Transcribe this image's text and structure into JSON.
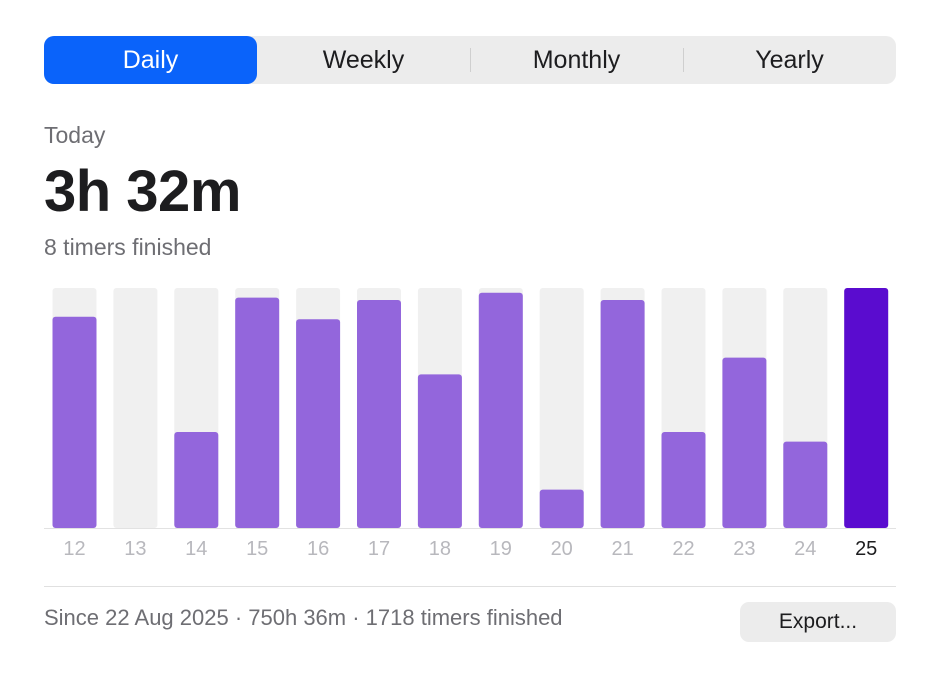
{
  "tabs": [
    {
      "label": "Daily",
      "active": true
    },
    {
      "label": "Weekly",
      "active": false
    },
    {
      "label": "Monthly",
      "active": false
    },
    {
      "label": "Yearly",
      "active": false
    }
  ],
  "summary_top": {
    "period_label": "Today",
    "total_time": "3h 32m",
    "timers_finished": "8 timers finished"
  },
  "footer": {
    "summary": "Since 22 Aug 2025 · 750h 36m · 1718 timers finished",
    "export_label": "Export..."
  },
  "colors": {
    "accent": "#0a63fa",
    "bar": "#9366dc",
    "bar_selected": "#5a0ccf",
    "track": "#f0f0f0"
  },
  "chart_data": {
    "type": "bar",
    "categories": [
      "12",
      "13",
      "14",
      "15",
      "16",
      "17",
      "18",
      "19",
      "20",
      "21",
      "22",
      "23",
      "24",
      "25"
    ],
    "values": [
      0.88,
      0,
      0.4,
      0.96,
      0.87,
      0.95,
      0.64,
      0.98,
      0.16,
      0.95,
      0.4,
      0.71,
      0.36,
      1.0
    ],
    "selected": "25",
    "ylim": [
      0,
      1
    ]
  }
}
